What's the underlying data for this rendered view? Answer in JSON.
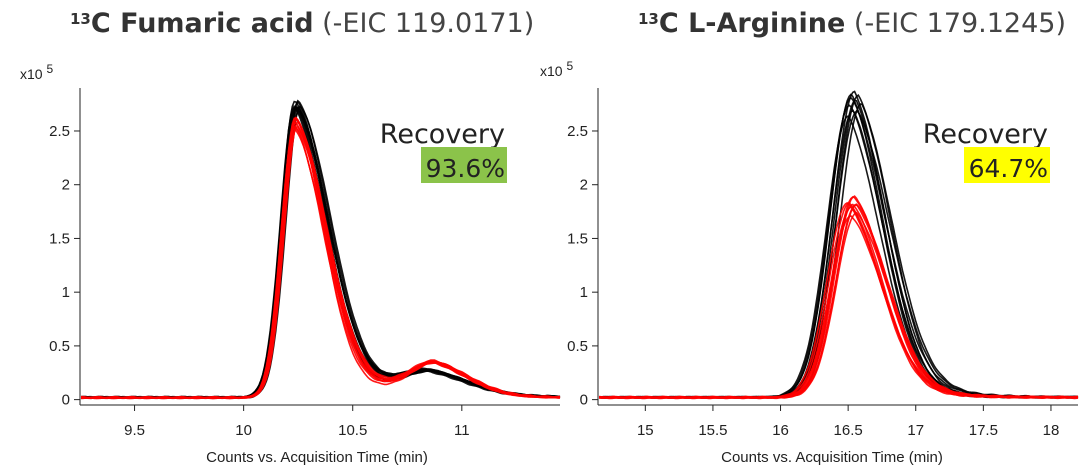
{
  "chart_data": [
    {
      "type": "line",
      "title": {
        "isotope": "13",
        "compound": "C Fumaric acid",
        "eic": "(-EIC  119.0171)"
      },
      "multiplier": {
        "base": "x10",
        "exp": "5"
      },
      "xlabel": "Counts vs. Acquisition Time (min)",
      "xlim": [
        9.25,
        11.45
      ],
      "ylim": [
        -0.05,
        2.9
      ],
      "xticks": [
        9.5,
        10,
        10.5,
        11
      ],
      "xtick_labels": [
        "9.5",
        "10",
        "10.5",
        "11"
      ],
      "yticks": [
        0,
        0.5,
        1,
        1.5,
        2,
        2.5
      ],
      "ytick_labels": [
        "0",
        "0.5",
        "1",
        "1.5",
        "2",
        "2.5"
      ],
      "annotation": {
        "label": "Recovery",
        "value": "93.6%",
        "color": "#8bc34a"
      },
      "series": [
        {
          "color": "#000000",
          "peaks": [
            {
              "c": 10.245,
              "a": 2.72,
              "sl": 0.065,
              "tail": 0.22
            },
            {
              "c": 10.86,
              "a": 0.21,
              "sl": 0.13,
              "tail": 0.15
            }
          ],
          "replicates": 10
        },
        {
          "color": "#ff0000",
          "peaks": [
            {
              "c": 10.24,
              "a": 2.56,
              "sl": 0.062,
              "tail": 0.22
            },
            {
              "c": 10.88,
              "a": 0.3,
              "sl": 0.12,
              "tail": 0.12
            }
          ],
          "replicates": 10
        }
      ]
    },
    {
      "type": "line",
      "title": {
        "isotope": "13",
        "compound": "C L-Arginine",
        "eic": "(-EIC 179.1245)"
      },
      "multiplier": {
        "base": "x10",
        "exp": "5"
      },
      "xlabel": "Counts vs. Acquisition Time (min)",
      "xlim": [
        14.65,
        18.2
      ],
      "ylim": [
        -0.05,
        2.9
      ],
      "xticks": [
        15,
        15.5,
        16,
        16.5,
        17,
        17.5,
        18
      ],
      "xtick_labels": [
        "15",
        "15.5",
        "16",
        "16.5",
        "17",
        "17.5",
        "18"
      ],
      "yticks": [
        0,
        0.5,
        1,
        1.5,
        2,
        2.5
      ],
      "ytick_labels": [
        "0",
        "0.5",
        "1",
        "1.5",
        "2",
        "2.5"
      ],
      "annotation": {
        "label": "Recovery",
        "value": "64.7%",
        "color": "#ffff00"
      },
      "series": [
        {
          "color": "#000000",
          "peaks": [
            {
              "c": 16.55,
              "a": 2.7,
              "sl": 0.16,
              "tail": 0.26
            }
          ],
          "replicates": 10
        },
        {
          "color": "#ff0000",
          "peaks": [
            {
              "c": 16.54,
              "a": 1.8,
              "sl": 0.15,
              "tail": 0.27
            }
          ],
          "replicates": 10
        }
      ]
    }
  ]
}
